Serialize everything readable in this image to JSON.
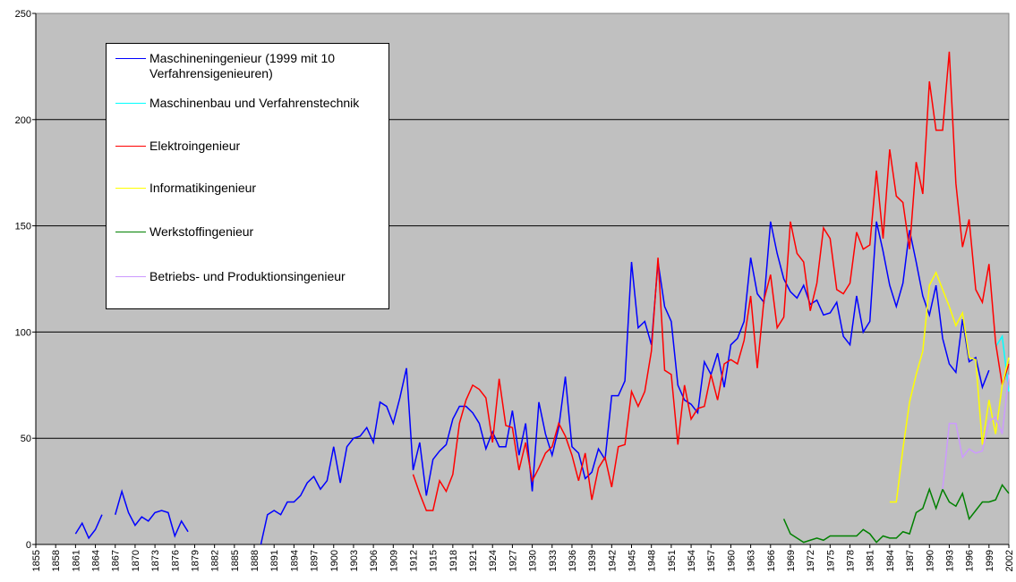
{
  "chart_data": {
    "type": "line",
    "xlim": [
      1855,
      2002
    ],
    "xticks": [
      1855,
      1858,
      1861,
      1864,
      1867,
      1870,
      1873,
      1876,
      1879,
      1882,
      1885,
      1888,
      1891,
      1894,
      1897,
      1900,
      1903,
      1906,
      1909,
      1912,
      1915,
      1918,
      1921,
      1924,
      1927,
      1930,
      1933,
      1936,
      1939,
      1942,
      1945,
      1948,
      1951,
      1954,
      1957,
      1960,
      1963,
      1966,
      1969,
      1972,
      1975,
      1978,
      1981,
      1984,
      1987,
      1990,
      1993,
      1996,
      1999,
      2002
    ],
    "ylim": [
      0,
      250
    ],
    "yticks": [
      0,
      50,
      100,
      150,
      200,
      250
    ],
    "grid": true,
    "legend": "upper left",
    "series": [
      {
        "name": "Maschineningenieur (1999 mit 10 Verfahrensigenieuren)",
        "color": "#0000ff",
        "x": [
          1861,
          1862,
          1863,
          1864,
          1865,
          1866,
          1867,
          1868,
          1869,
          1870,
          1871,
          1872,
          1873,
          1874,
          1875,
          1876,
          1877,
          1878,
          1879,
          1880,
          1881,
          1882,
          1883,
          1884,
          1885,
          1886,
          1887,
          1888,
          1889,
          1890,
          1891,
          1892,
          1893,
          1894,
          1895,
          1896,
          1897,
          1898,
          1899,
          1900,
          1901,
          1902,
          1903,
          1904,
          1905,
          1906,
          1907,
          1908,
          1909,
          1910,
          1911,
          1912,
          1913,
          1914,
          1915,
          1916,
          1917,
          1918,
          1919,
          1920,
          1921,
          1922,
          1923,
          1924,
          1925,
          1926,
          1927,
          1928,
          1929,
          1930,
          1931,
          1932,
          1933,
          1934,
          1935,
          1936,
          1937,
          1938,
          1939,
          1940,
          1941,
          1942,
          1943,
          1944,
          1945,
          1946,
          1947,
          1948,
          1949,
          1950,
          1951,
          1952,
          1953,
          1954,
          1955,
          1956,
          1957,
          1958,
          1959,
          1960,
          1961,
          1962,
          1963,
          1964,
          1965,
          1966,
          1967,
          1968,
          1969,
          1970,
          1971,
          1972,
          1973,
          1974,
          1975,
          1976,
          1977,
          1978,
          1979,
          1980,
          1981,
          1982,
          1983,
          1984,
          1985,
          1986,
          1987,
          1988,
          1989,
          1990,
          1991,
          1992,
          1993,
          1994,
          1995,
          1996,
          1997,
          1998,
          1999
        ],
        "values": [
          5,
          10,
          3,
          7,
          14,
          null,
          14,
          25,
          15,
          9,
          13,
          11,
          15,
          16,
          15,
          4,
          11,
          6,
          null,
          null,
          null,
          null,
          null,
          null,
          null,
          null,
          null,
          null,
          0,
          14,
          16,
          14,
          20,
          20,
          23,
          29,
          32,
          26,
          30,
          46,
          29,
          46,
          50,
          51,
          55,
          48,
          67,
          65,
          57,
          69,
          83,
          35,
          48,
          23,
          40,
          44,
          47,
          59,
          65,
          65,
          62,
          57,
          45,
          53,
          46,
          46,
          63,
          42,
          57,
          25,
          67,
          52,
          42,
          55,
          79,
          46,
          43,
          31,
          34,
          45,
          40,
          70,
          70,
          77,
          133,
          102,
          105,
          94,
          133,
          112,
          105,
          75,
          68,
          66,
          62,
          86,
          80,
          90,
          74,
          94,
          97,
          105,
          135,
          118,
          114,
          152,
          137,
          125,
          119,
          116,
          122,
          113,
          115,
          108,
          109,
          114,
          98,
          94,
          117,
          100,
          105,
          152,
          138,
          122,
          112,
          123,
          148,
          133,
          117,
          108,
          122,
          97,
          85,
          81,
          106,
          86,
          88,
          74,
          82
        ]
      },
      {
        "name": "Maschinenbau und Verfahrenstechnik",
        "color": "#00ffff",
        "x": [
          2000,
          2001,
          2002
        ],
        "values": [
          93,
          98,
          72
        ]
      },
      {
        "name": "Elektroingenieur",
        "color": "#ff0000",
        "x": [
          1912,
          1913,
          1914,
          1915,
          1916,
          1917,
          1918,
          1919,
          1920,
          1921,
          1922,
          1923,
          1924,
          1925,
          1926,
          1927,
          1928,
          1929,
          1930,
          1931,
          1932,
          1933,
          1934,
          1935,
          1936,
          1937,
          1938,
          1939,
          1940,
          1941,
          1942,
          1943,
          1944,
          1945,
          1946,
          1947,
          1948,
          1949,
          1950,
          1951,
          1952,
          1953,
          1954,
          1955,
          1956,
          1957,
          1958,
          1959,
          1960,
          1961,
          1962,
          1963,
          1964,
          1965,
          1966,
          1967,
          1968,
          1969,
          1970,
          1971,
          1972,
          1973,
          1974,
          1975,
          1976,
          1977,
          1978,
          1979,
          1980,
          1981,
          1982,
          1983,
          1984,
          1985,
          1986,
          1987,
          1988,
          1989,
          1990,
          1991,
          1992,
          1993,
          1994,
          1995,
          1996,
          1997,
          1998,
          1999,
          2000,
          2001,
          2002
        ],
        "values": [
          33,
          24,
          16,
          16,
          30,
          25,
          33,
          57,
          68,
          75,
          73,
          69,
          48,
          78,
          56,
          55,
          35,
          48,
          30,
          36,
          43,
          46,
          57,
          51,
          42,
          30,
          43,
          21,
          36,
          41,
          27,
          46,
          47,
          72,
          65,
          72,
          91,
          135,
          82,
          80,
          47,
          75,
          59,
          64,
          65,
          80,
          68,
          85,
          87,
          85,
          96,
          117,
          83,
          115,
          127,
          102,
          107,
          152,
          137,
          133,
          110,
          123,
          149,
          144,
          120,
          118,
          123,
          147,
          139,
          141,
          176,
          144,
          186,
          164,
          161,
          139,
          180,
          165,
          218,
          195,
          195,
          232,
          170,
          140,
          153,
          120,
          114,
          132,
          95,
          75,
          85
        ]
      },
      {
        "name": "Informatikingenieur",
        "color": "#ffff00",
        "x": [
          1984,
          1985,
          1986,
          1987,
          1988,
          1989,
          1990,
          1991,
          1992,
          1993,
          1994,
          1995,
          1996,
          1997,
          1998,
          1999,
          2000,
          2001,
          2002
        ],
        "values": [
          20,
          20,
          45,
          67,
          80,
          91,
          122,
          128,
          120,
          112,
          103,
          109,
          88,
          87,
          47,
          68,
          52,
          75,
          88
        ]
      },
      {
        "name": "Werkstoffingenieur",
        "color": "#008000",
        "x": [
          1968,
          1969,
          1970,
          1971,
          1972,
          1973,
          1974,
          1975,
          1976,
          1977,
          1978,
          1979,
          1980,
          1981,
          1982,
          1983,
          1984,
          1985,
          1986,
          1987,
          1988,
          1989,
          1990,
          1991,
          1992,
          1993,
          1994,
          1995,
          1996,
          1997,
          1998,
          1999,
          2000,
          2001,
          2002
        ],
        "values": [
          12,
          5,
          3,
          1,
          2,
          3,
          2,
          4,
          4,
          4,
          4,
          4,
          7,
          5,
          1,
          4,
          3,
          3,
          6,
          5,
          15,
          17,
          26,
          17,
          26,
          20,
          18,
          24,
          12,
          16,
          20,
          20,
          21,
          28,
          24
        ]
      },
      {
        "name": "Betriebs- und Produktionsingenieur",
        "color": "#cc99ff",
        "x": [
          1992,
          1993,
          1994,
          1995,
          1996,
          1997,
          1998,
          1999,
          2000,
          2001,
          2002
        ],
        "values": [
          26,
          57,
          57,
          41,
          45,
          43,
          44,
          58,
          60,
          52,
          80
        ]
      }
    ]
  }
}
